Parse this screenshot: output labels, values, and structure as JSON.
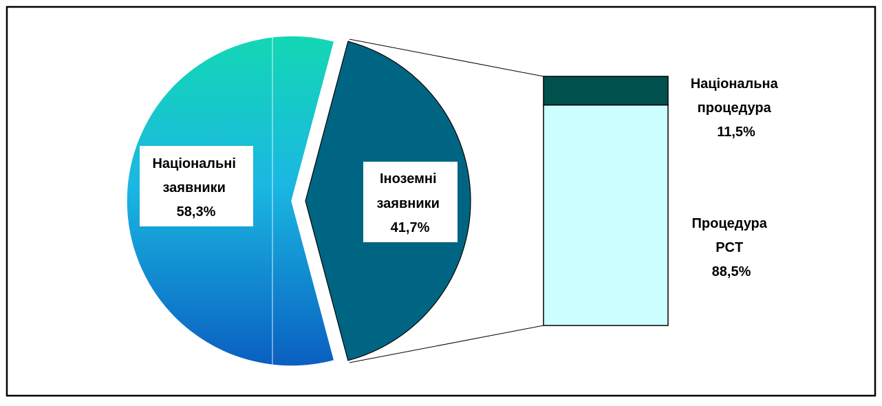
{
  "chart_data": {
    "type": "pie",
    "subtype": "bar-of-pie",
    "pie": {
      "slices": [
        {
          "label_lines": [
            "Національні",
            "заявники",
            "58,3%"
          ],
          "value": 58.3,
          "color_top": "#13d7b4",
          "color_mid": "#1ab8e2",
          "color_bottom": "#0a5fc0",
          "exploded": false
        },
        {
          "label_lines": [
            "Іноземні",
            "заявники",
            "41,7%"
          ],
          "value": 41.7,
          "color": "#006583",
          "exploded": true
        }
      ]
    },
    "bar": {
      "parent": "Іноземні заявники",
      "segments": [
        {
          "label_lines": [
            "Національна",
            "процедура",
            "11,5%"
          ],
          "value": 11.5,
          "color": "#00514d"
        },
        {
          "label_lines": [
            "Процедура",
            "PCT",
            "88,5%"
          ],
          "value": 88.5,
          "color": "#ccffff"
        }
      ]
    },
    "colors": {
      "border": "#000000",
      "background": "#ffffff",
      "label_box": "#ffffff"
    }
  }
}
